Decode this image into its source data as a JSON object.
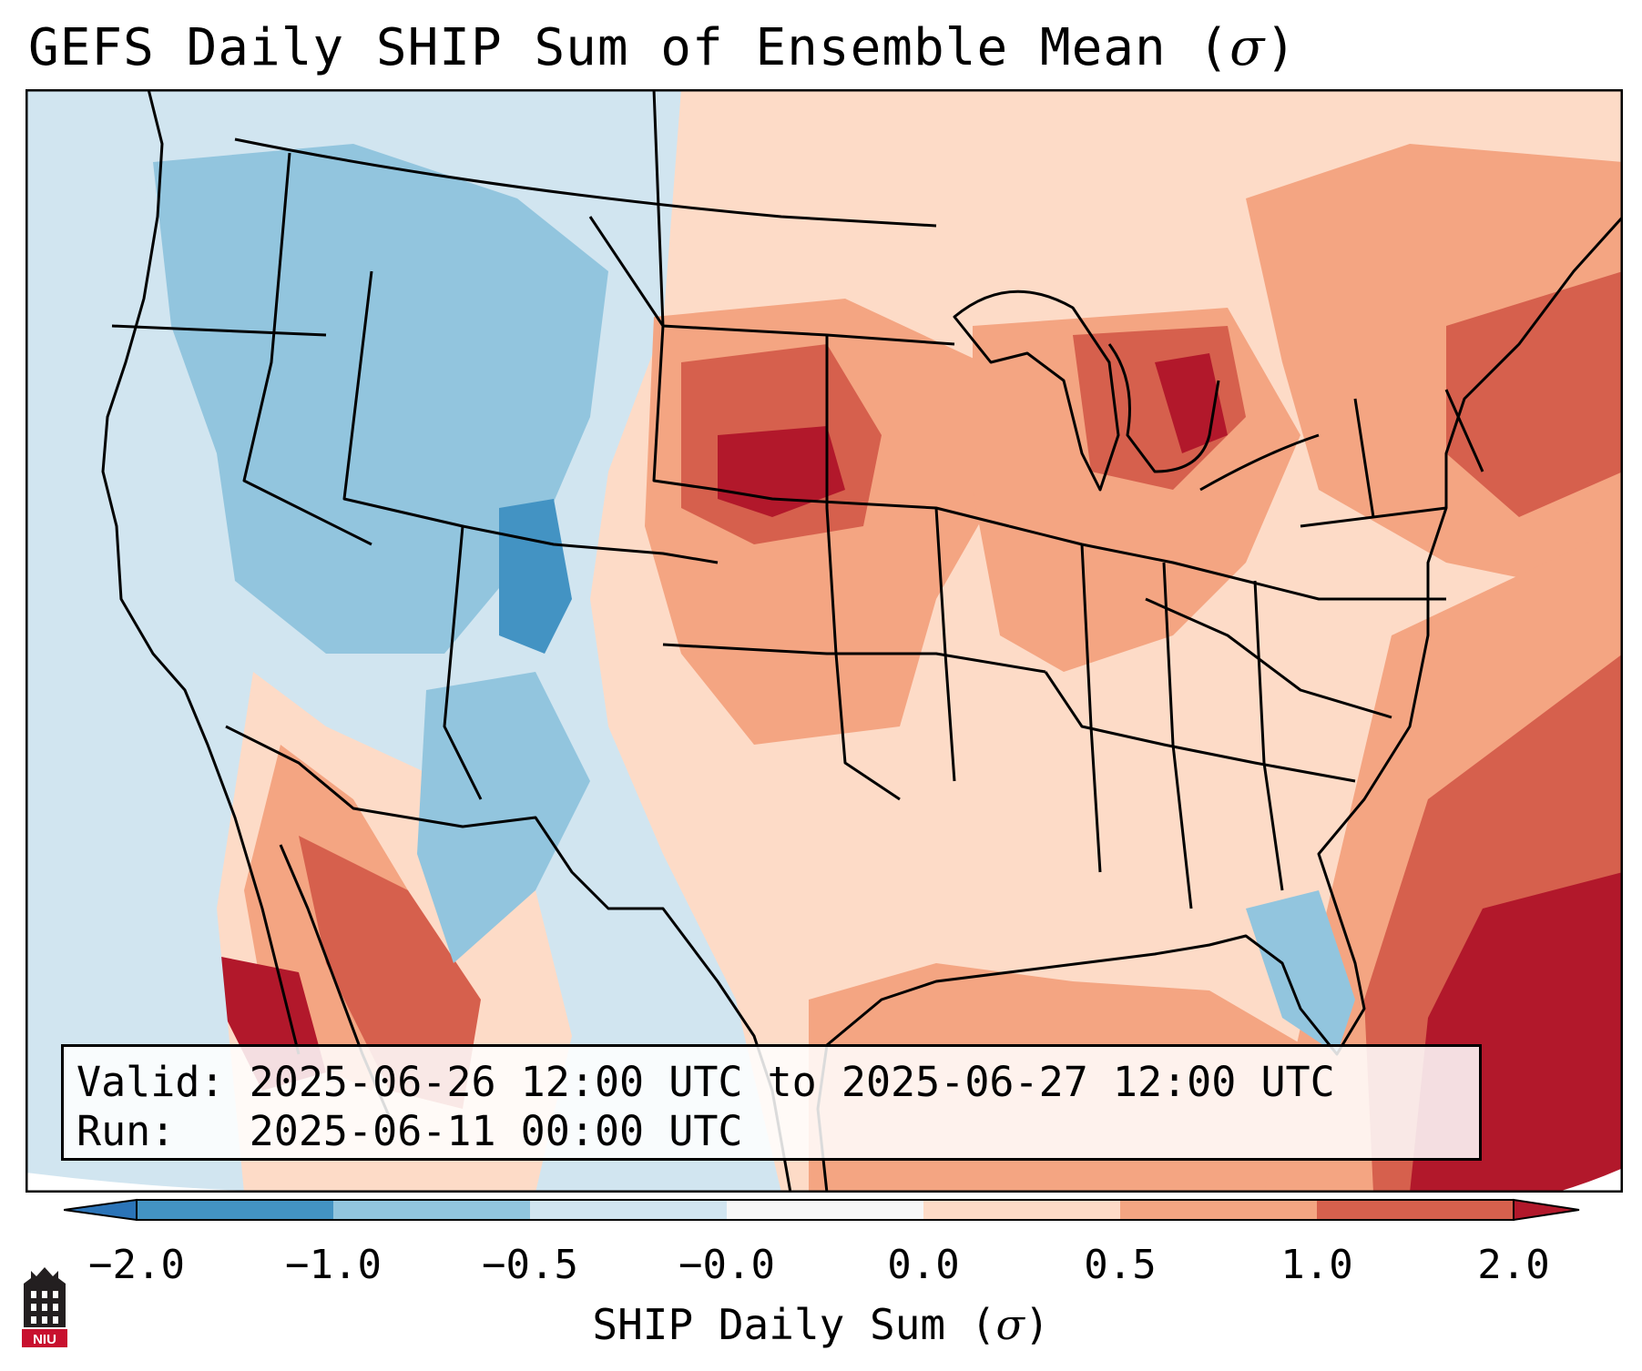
{
  "title": {
    "prefix": "GEFS Daily SHIP Sum of Ensemble Mean (",
    "symbol": "σ",
    "suffix": ")"
  },
  "info": {
    "valid_label": "Valid:",
    "valid_value": "2025-06-26 12:00 UTC to 2025-06-27 12:00 UTC",
    "run_label": "Run:",
    "run_value": "2025-06-11 00:00 UTC"
  },
  "colorbar": {
    "tick_labels": [
      "−2.0",
      "−1.0",
      "−0.5",
      "−0.0",
      "0.0",
      "0.5",
      "1.0",
      "2.0"
    ],
    "colors": {
      "under": "#2b74b8",
      "bins": [
        "#4393c3",
        "#92c5de",
        "#d1e5f0",
        "#f7f7f7",
        "#fddbc7",
        "#f4a582",
        "#d6604d"
      ],
      "over": "#b2182b"
    },
    "label_prefix": "SHIP Daily Sum (",
    "label_symbol": "σ",
    "label_suffix": ")"
  },
  "logo": {
    "text": "NIU",
    "colors": {
      "red": "#c8102e",
      "dark": "#231f20"
    }
  },
  "map_regions": [
    {
      "name": "pacific-northwest",
      "value": -0.5
    },
    {
      "name": "idaho-wyoming",
      "value": -0.7
    },
    {
      "name": "colorado",
      "value": -1.2
    },
    {
      "name": "nebraska-south-dakota",
      "value": 1.3
    },
    {
      "name": "michigan",
      "value": 1.4
    },
    {
      "name": "new-england",
      "value": 1.5
    },
    {
      "name": "florida",
      "value": -0.4
    },
    {
      "name": "atlantic-ocean",
      "value": 2.1
    },
    {
      "name": "gulf-of-mexico",
      "value": 0.8
    },
    {
      "name": "baja-sonora",
      "value": 1.2
    },
    {
      "name": "texas",
      "value": 0.2
    }
  ]
}
